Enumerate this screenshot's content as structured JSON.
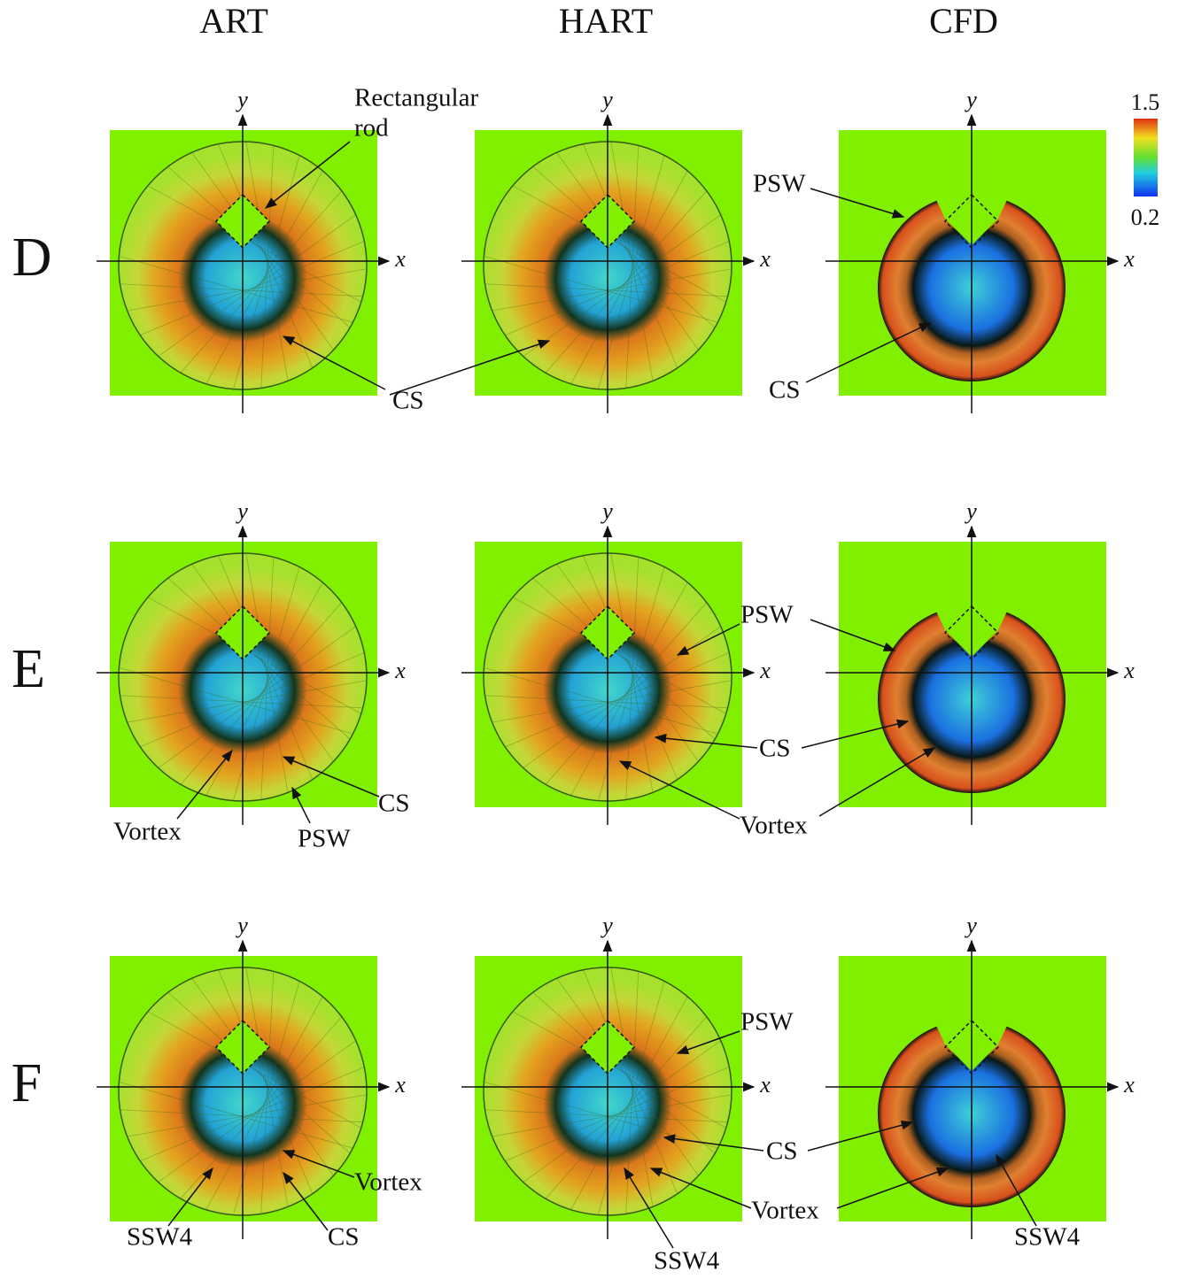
{
  "column_headers": [
    "ART",
    "HART",
    "CFD"
  ],
  "row_labels": [
    "D",
    "E",
    "F"
  ],
  "axis_labels": {
    "x": "x",
    "y": "y"
  },
  "colorbar": {
    "max": 1.5,
    "min": 0.2
  },
  "row_annotations": [
    [
      "Rectangular",
      "rod",
      "CS",
      "PSW",
      "CS"
    ],
    [
      "CS",
      "Vortex",
      "PSW",
      "PSW",
      "CS",
      "Vortex"
    ],
    [
      "Vortex",
      "SSW4",
      "CS",
      "PSW",
      "CS",
      "Vortex",
      "SSW4",
      "SSW4"
    ]
  ]
}
